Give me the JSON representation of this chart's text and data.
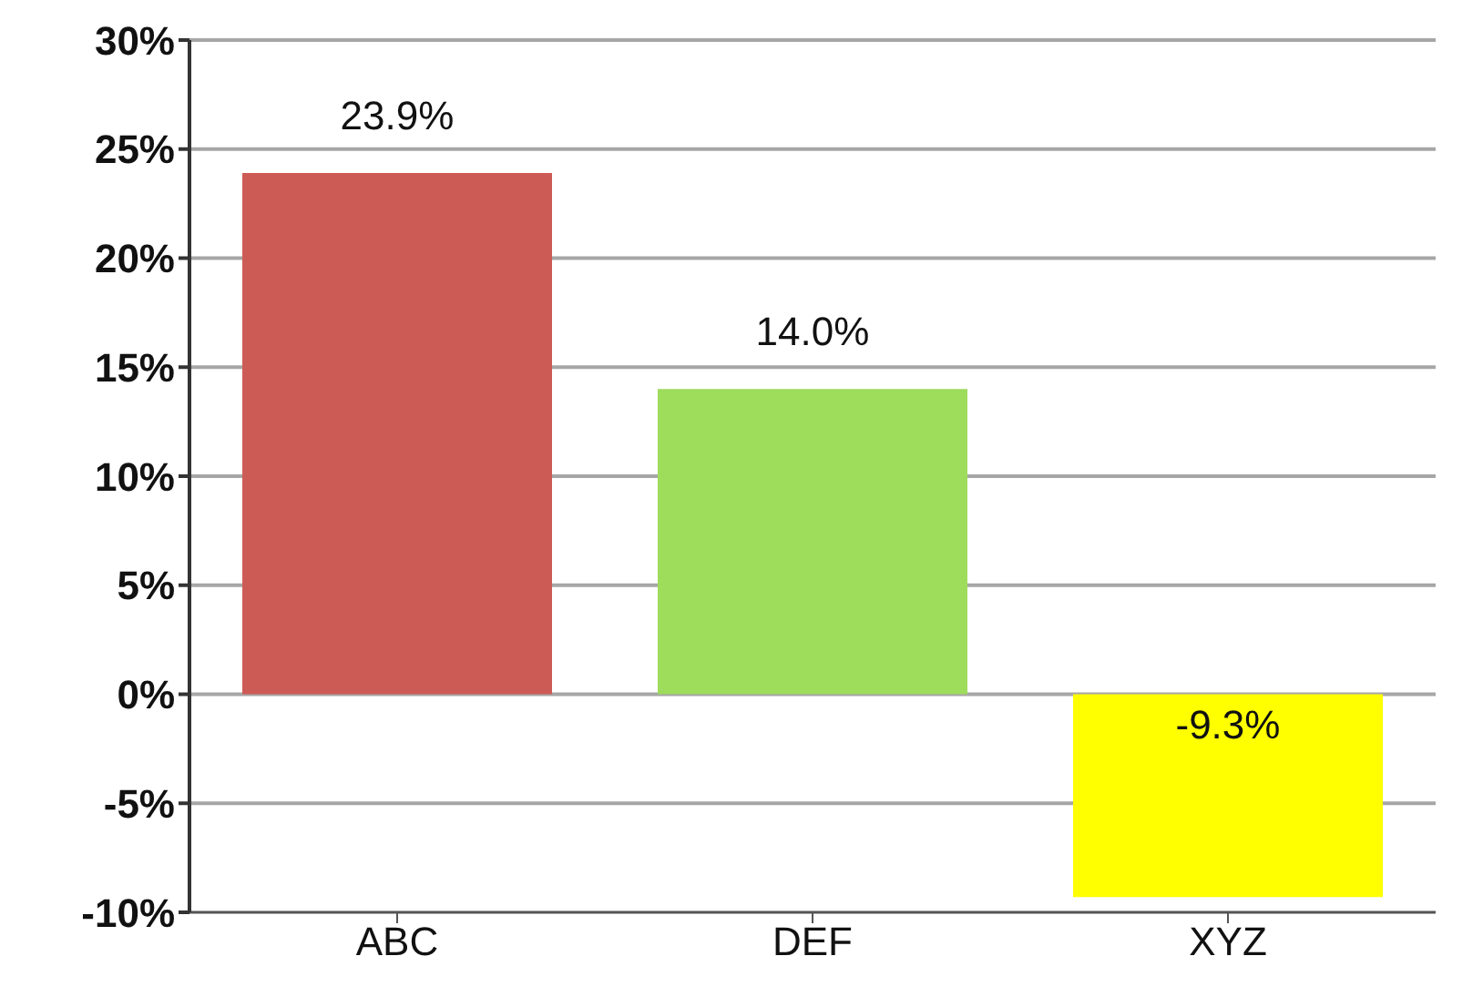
{
  "chart_data": {
    "type": "bar",
    "categories": [
      "ABC",
      "DEF",
      "XYZ"
    ],
    "values": [
      23.9,
      14.0,
      -9.3
    ],
    "colors": [
      "#cd5b55",
      "#9edc5c",
      "#ffff00"
    ],
    "value_labels": [
      "23.9%",
      "14.0%",
      "-9.3%"
    ],
    "ylim": [
      -10,
      30
    ],
    "yticks": [
      {
        "value": -10,
        "label": "-10%"
      },
      {
        "value": -5,
        "label": "-5%"
      },
      {
        "value": 0,
        "label": "0%"
      },
      {
        "value": 5,
        "label": "5%"
      },
      {
        "value": 10,
        "label": "10%"
      },
      {
        "value": 15,
        "label": "15%"
      },
      {
        "value": 20,
        "label": "20%"
      },
      {
        "value": 25,
        "label": "25%"
      },
      {
        "value": 30,
        "label": "30%"
      }
    ],
    "grid": "y"
  }
}
